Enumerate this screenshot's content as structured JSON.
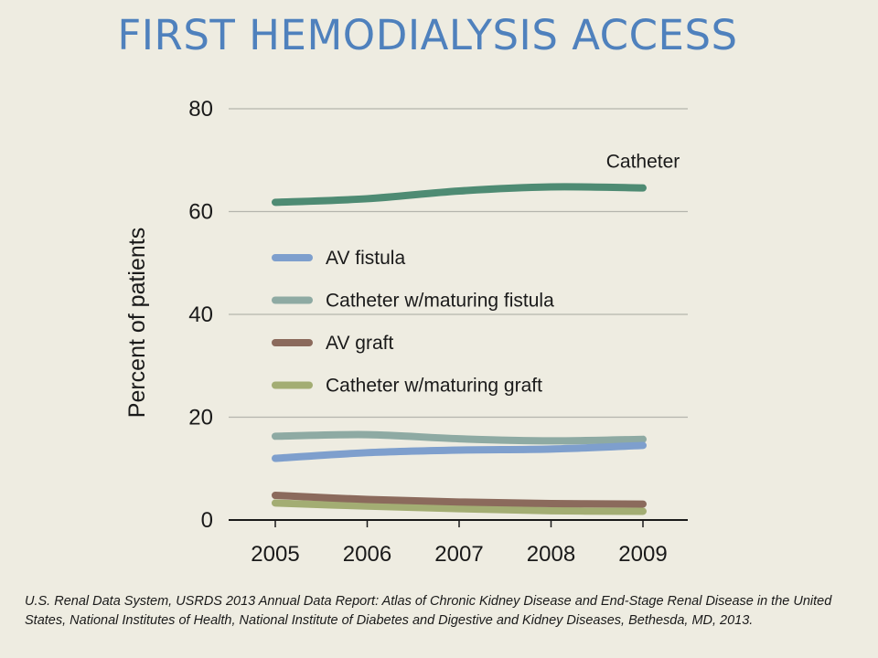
{
  "slide": {
    "title": "FIRST HEMODIALYSIS ACCESS",
    "citation": "U.S. Renal Data System, USRDS 2013 Annual Data Report: Atlas of Chronic Kidney Disease and End-Stage Renal Disease in the United States, National Institutes of Health, National Institute of Diabetes and Digestive and Kidney Diseases, Bethesda, MD, 2013."
  },
  "colors": {
    "background": "#eeece1",
    "title": "#4f81bd",
    "gridline": "#b5b5ad",
    "axis": "#1a1a1a"
  },
  "chart_data": {
    "type": "line",
    "title": "",
    "xlabel": "",
    "ylabel": "Percent of patients",
    "categories": [
      "2005",
      "2006",
      "2007",
      "2008",
      "2009"
    ],
    "yticks": [
      "0",
      "20",
      "40",
      "60",
      "80"
    ],
    "ylim": [
      0,
      80
    ],
    "grid": "horizontal",
    "legend_position": "center-left",
    "series": [
      {
        "name": "Catheter",
        "color": "#4e8b73",
        "values": [
          61.8,
          62.5,
          64.0,
          64.8,
          64.6
        ],
        "in_legend": false,
        "label_position": "end"
      },
      {
        "name": "AV fistula",
        "color": "#7e9fcd",
        "values": [
          12.0,
          13.1,
          13.6,
          13.8,
          14.5
        ],
        "in_legend": true
      },
      {
        "name": "Catheter w/maturing fistula",
        "color": "#8eaaa3",
        "values": [
          16.3,
          16.6,
          15.8,
          15.4,
          15.7
        ],
        "in_legend": true
      },
      {
        "name": "AV graft",
        "color": "#8b6a5c",
        "values": [
          4.8,
          4.0,
          3.5,
          3.2,
          3.1
        ],
        "in_legend": true
      },
      {
        "name": "Catheter w/maturing graft",
        "color": "#a3ad73",
        "values": [
          3.3,
          2.7,
          2.2,
          1.8,
          1.7
        ],
        "in_legend": true
      }
    ]
  }
}
